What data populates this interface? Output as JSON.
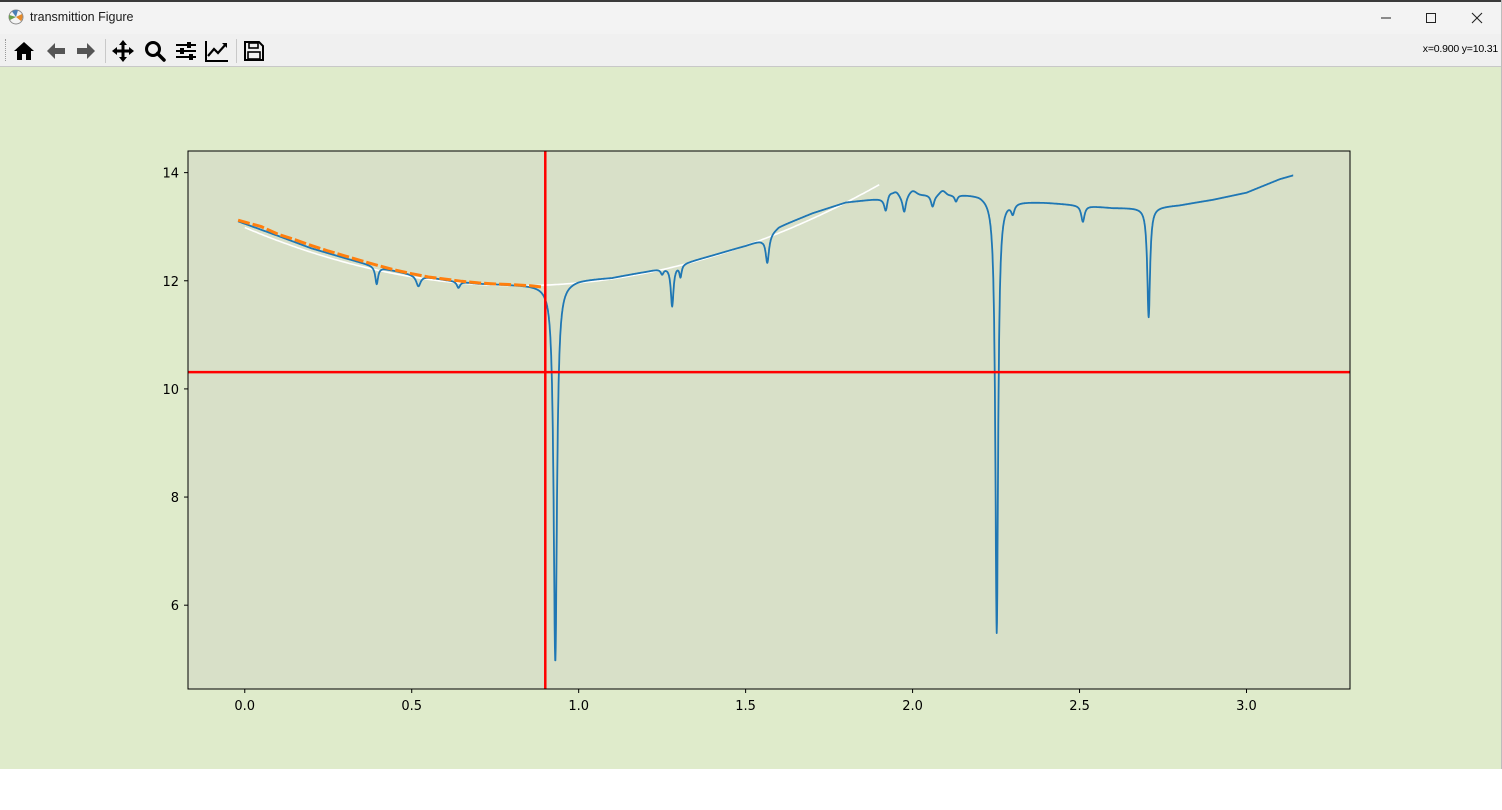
{
  "window": {
    "title": "transmittion Figure",
    "icons": {
      "app": "matplotlib-icon",
      "minimize": "minimize-icon",
      "maximize": "maximize-icon",
      "close": "close-icon"
    }
  },
  "toolbar": {
    "buttons": [
      {
        "name": "home",
        "icon": "home-icon"
      },
      {
        "name": "back",
        "icon": "arrow-left-icon"
      },
      {
        "name": "forward",
        "icon": "arrow-right-icon"
      },
      {
        "name": "pan",
        "icon": "move-icon"
      },
      {
        "name": "zoom",
        "icon": "magnifier-icon"
      },
      {
        "name": "subplots",
        "icon": "sliders-icon"
      },
      {
        "name": "customize",
        "icon": "line-chart-icon"
      },
      {
        "name": "save",
        "icon": "floppy-icon"
      }
    ],
    "coordinates": "x=0.900 y=10.31"
  },
  "colors": {
    "figure_background": "#dfebcb",
    "axes_background": "#d8e0c8",
    "series_main": "#1f77b4",
    "series_fit_points": "#ff7f0e",
    "fit_curve": "#ffffff",
    "crosshair": "#ff0000"
  },
  "chart_data": {
    "type": "line",
    "title": "",
    "xlabel": "",
    "ylabel": "",
    "xlim": [
      -0.17,
      3.31
    ],
    "ylim": [
      4.45,
      14.4
    ],
    "xticks": [
      "0.0",
      "0.5",
      "1.0",
      "1.5",
      "2.0",
      "2.5",
      "3.0"
    ],
    "yticks": [
      "6",
      "8",
      "10",
      "12",
      "14"
    ],
    "grid": false,
    "legend": "none",
    "crosshair": {
      "x": 0.9,
      "y": 10.31
    },
    "series": [
      {
        "role": "transmission",
        "color": "#1f77b4",
        "baseline": [
          [
            -0.02,
            13.1
          ],
          [
            0.1,
            12.83
          ],
          [
            0.2,
            12.6
          ],
          [
            0.3,
            12.42
          ],
          [
            0.4,
            12.25
          ],
          [
            0.5,
            12.12
          ],
          [
            0.6,
            12.02
          ],
          [
            0.7,
            11.95
          ],
          [
            0.8,
            11.93
          ],
          [
            0.9,
            11.92
          ],
          [
            1.0,
            12.02
          ],
          [
            1.1,
            12.06
          ],
          [
            1.2,
            12.17
          ],
          [
            1.3,
            12.3
          ],
          [
            1.4,
            12.47
          ],
          [
            1.5,
            12.65
          ],
          [
            1.55,
            12.76
          ],
          [
            1.6,
            13.0
          ],
          [
            1.7,
            13.25
          ],
          [
            1.8,
            13.45
          ],
          [
            1.9,
            13.52
          ],
          [
            2.0,
            13.6
          ],
          [
            2.1,
            13.6
          ],
          [
            2.2,
            13.6
          ],
          [
            2.3,
            13.48
          ],
          [
            2.4,
            13.45
          ],
          [
            2.5,
            13.4
          ],
          [
            2.6,
            13.35
          ],
          [
            2.7,
            13.35
          ],
          [
            2.8,
            13.4
          ],
          [
            2.9,
            13.5
          ],
          [
            3.0,
            13.63
          ],
          [
            3.1,
            13.88
          ],
          [
            3.14,
            13.95
          ]
        ],
        "dips": [
          {
            "x": 0.395,
            "depth": 0.32,
            "width": 0.005
          },
          {
            "x": 0.52,
            "depth": 0.2,
            "width": 0.008
          },
          {
            "x": 0.64,
            "depth": 0.12,
            "width": 0.006
          },
          {
            "x": 0.93,
            "depth": 7.0,
            "width": 0.006
          },
          {
            "x": 1.25,
            "depth": 0.1,
            "width": 0.005
          },
          {
            "x": 1.28,
            "depth": 0.74,
            "width": 0.005
          },
          {
            "x": 1.305,
            "depth": 0.22,
            "width": 0.004
          },
          {
            "x": 1.565,
            "depth": 0.5,
            "width": 0.006
          },
          {
            "x": 1.92,
            "depth": 0.28,
            "width": 0.006
          },
          {
            "x": 1.975,
            "depth": 0.3,
            "width": 0.006
          },
          {
            "x": 2.06,
            "depth": 0.22,
            "width": 0.006
          },
          {
            "x": 2.13,
            "depth": 0.12,
            "width": 0.005
          },
          {
            "x": 2.252,
            "depth": 8.05,
            "width": 0.005
          },
          {
            "x": 2.3,
            "depth": 0.18,
            "width": 0.006
          },
          {
            "x": 2.51,
            "depth": 0.3,
            "width": 0.006
          },
          {
            "x": 2.707,
            "depth": 2.03,
            "width": 0.005
          }
        ],
        "bumps": [
          {
            "x": 1.93,
            "height": 0.1,
            "width": 0.012
          },
          {
            "x": 1.95,
            "height": 0.1,
            "width": 0.012
          },
          {
            "x": 2.0,
            "height": 0.08,
            "width": 0.015
          },
          {
            "x": 2.09,
            "height": 0.08,
            "width": 0.012
          }
        ]
      },
      {
        "role": "fit-points",
        "color": "#ff7f0e",
        "points": [
          [
            -0.02,
            13.12
          ],
          [
            0.05,
            13.0
          ],
          [
            0.1,
            12.86
          ],
          [
            0.15,
            12.76
          ],
          [
            0.2,
            12.65
          ],
          [
            0.25,
            12.55
          ],
          [
            0.3,
            12.46
          ],
          [
            0.35,
            12.37
          ],
          [
            0.4,
            12.28
          ],
          [
            0.45,
            12.2
          ],
          [
            0.5,
            12.13
          ],
          [
            0.55,
            12.07
          ],
          [
            0.6,
            12.03
          ],
          [
            0.65,
            11.99
          ],
          [
            0.7,
            11.96
          ],
          [
            0.75,
            11.94
          ],
          [
            0.8,
            11.93
          ],
          [
            0.85,
            11.91
          ],
          [
            0.9,
            11.88
          ]
        ]
      },
      {
        "role": "fit-curve",
        "color": "#ffffff",
        "parabola": {
          "vertex_x": 0.82,
          "vertex_y": 11.91,
          "a": 1.6
        },
        "x_range": [
          0.0,
          1.9
        ]
      }
    ]
  }
}
